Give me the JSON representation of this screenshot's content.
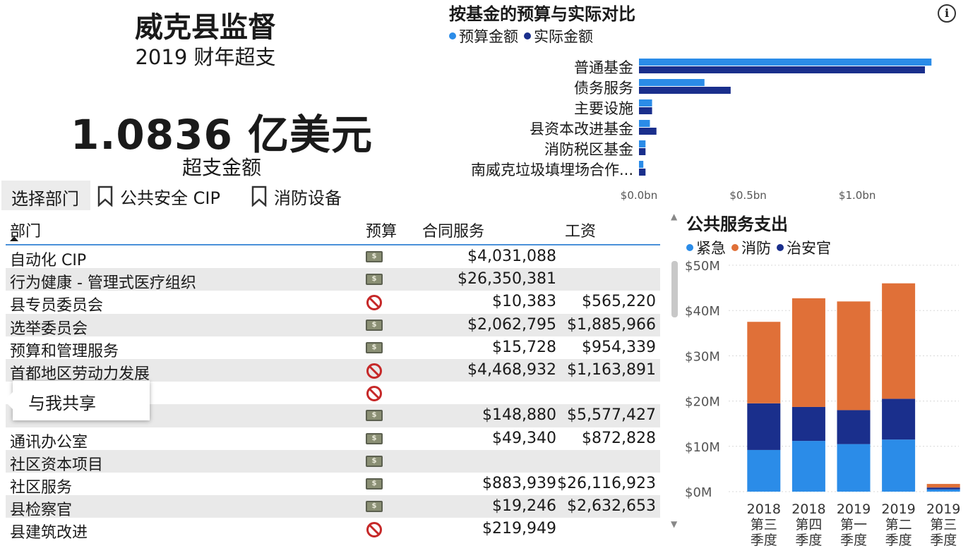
{
  "header": {
    "title": "威克县监督",
    "subtitle": "2019 财年超支",
    "kpi_value": "1.0836 亿美元",
    "kpi_label": "超支金额"
  },
  "controls": {
    "select_department": "选择部门",
    "bookmark_public_safety": "公共安全 CIP",
    "bookmark_fire_equipment": "消防设备"
  },
  "table": {
    "columns": [
      "部门",
      "预算",
      "合同服务",
      "工资"
    ],
    "rows": [
      {
        "name": "自动化 CIP",
        "budget": "money",
        "contract": "$4,031,088",
        "salary": ""
      },
      {
        "name": "行为健康 - 管理式医疗组织",
        "budget": "money",
        "contract": "$26,350,381",
        "salary": ""
      },
      {
        "name": "县专员委员会",
        "budget": "prohibited",
        "contract": "$10,383",
        "salary": "$565,220"
      },
      {
        "name": "选举委员会",
        "budget": "money",
        "contract": "$2,062,795",
        "salary": "$1,885,966"
      },
      {
        "name": "预算和管理服务",
        "budget": "money",
        "contract": "$15,728",
        "salary": "$954,339"
      },
      {
        "name": "首都地区劳动力发展",
        "budget": "prohibited",
        "contract": "$4,468,932",
        "salary": "$1,163,891"
      },
      {
        "name": "",
        "budget": "prohibited",
        "contract": "",
        "salary": ""
      },
      {
        "name": "",
        "budget": "money",
        "contract": "$148,880",
        "salary": "$5,577,427"
      },
      {
        "name": "通讯办公室",
        "budget": "money",
        "contract": "$49,340",
        "salary": "$872,828"
      },
      {
        "name": "社区资本项目",
        "budget": "money",
        "contract": "",
        "salary": ""
      },
      {
        "name": "社区服务",
        "budget": "money",
        "contract": "$883,939",
        "salary": "$26,116,923"
      },
      {
        "name": "县检察官",
        "budget": "money",
        "contract": "$19,246",
        "salary": "$2,632,653"
      },
      {
        "name": "县建筑改进",
        "budget": "prohibited",
        "contract": "$219,949",
        "salary": ""
      }
    ]
  },
  "tooltip": {
    "share_label": "与我共享"
  },
  "colors": {
    "budget": "#2b8ce8",
    "actual": "#1a2f8c",
    "emergency": "#2b8ce8",
    "fire": "#e07038",
    "sheriff": "#1a2f8c",
    "accent_line": "#4a90d9"
  },
  "chart_data": [
    {
      "type": "bar",
      "orientation": "horizontal",
      "title": "按基金的预算与实际对比",
      "categories": [
        "普通基金",
        "债务服务",
        "主要设施",
        "县资本改进基金",
        "消防税区基金",
        "南威克垃圾填埋场合作..."
      ],
      "series": [
        {
          "name": "预算金额",
          "values": [
            1.34,
            0.3,
            0.06,
            0.05,
            0.03,
            0.02
          ]
        },
        {
          "name": "实际金额",
          "values": [
            1.31,
            0.42,
            0.06,
            0.08,
            0.03,
            0.03
          ]
        }
      ],
      "xtick_labels": [
        "$0.0bn",
        "$0.5bn",
        "$1.0bn"
      ],
      "xticks": [
        0,
        0.5,
        1.0
      ],
      "xlim": [
        0,
        1.42
      ],
      "legend_position": "top-left"
    },
    {
      "type": "bar",
      "stacked": true,
      "title": "公共服务支出",
      "categories": [
        "2018 第三 季度",
        "2018 第四 季度",
        "2019 第一 季度",
        "2019 第二 季度",
        "2019 第三 季度"
      ],
      "category_lines": [
        [
          "2018",
          "第三",
          "季度"
        ],
        [
          "2018",
          "第四",
          "季度"
        ],
        [
          "2019",
          "第一",
          "季度"
        ],
        [
          "2019",
          "第二",
          "季度"
        ],
        [
          "2019",
          "第三",
          "季度"
        ]
      ],
      "series": [
        {
          "name": "紧急",
          "values": [
            9.2,
            11.2,
            10.5,
            11.5,
            0.5
          ]
        },
        {
          "name": "治安官",
          "values": [
            10.3,
            7.5,
            7.5,
            9.0,
            0.4
          ]
        },
        {
          "name": "消防",
          "values": [
            18.0,
            24.0,
            24.0,
            25.5,
            0.8
          ]
        }
      ],
      "legend_order": [
        "紧急",
        "消防",
        "治安官"
      ],
      "ytick_labels": [
        "$0M",
        "$10M",
        "$20M",
        "$30M",
        "$40M",
        "$50M"
      ],
      "yticks": [
        0,
        10,
        20,
        30,
        40,
        50
      ],
      "ylim": [
        0,
        50
      ],
      "grid": true,
      "legend_position": "top-left"
    }
  ]
}
